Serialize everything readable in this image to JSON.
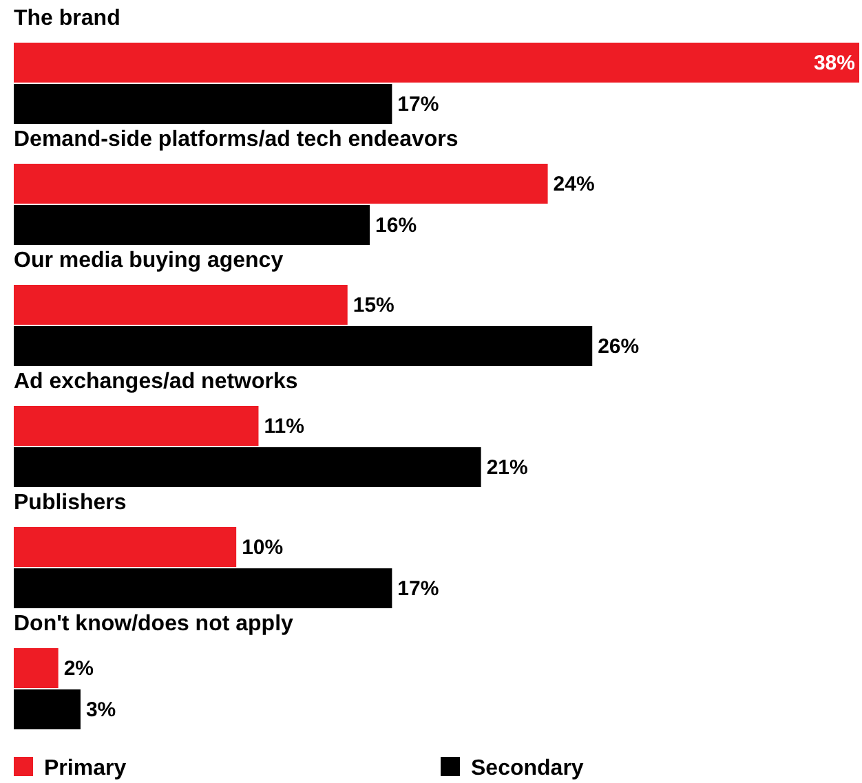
{
  "chart_data": {
    "type": "bar",
    "orientation": "horizontal",
    "categories": [
      "The brand",
      "Demand-side platforms/ad tech endeavors",
      "Our media buying agency",
      "Ad exchanges/ad networks",
      "Publishers",
      "Don't know/does not apply"
    ],
    "series": [
      {
        "name": "Primary",
        "color": "#ee1c25",
        "values": [
          38,
          24,
          15,
          11,
          10,
          2
        ],
        "value_labels": [
          "38%",
          "24%",
          "15%",
          "11%",
          "10%",
          "2%"
        ]
      },
      {
        "name": "Secondary",
        "color": "#000000",
        "values": [
          17,
          16,
          26,
          21,
          17,
          3
        ],
        "value_labels": [
          "17%",
          "16%",
          "26%",
          "21%",
          "17%",
          "3%"
        ]
      }
    ],
    "legend": "bottom"
  }
}
